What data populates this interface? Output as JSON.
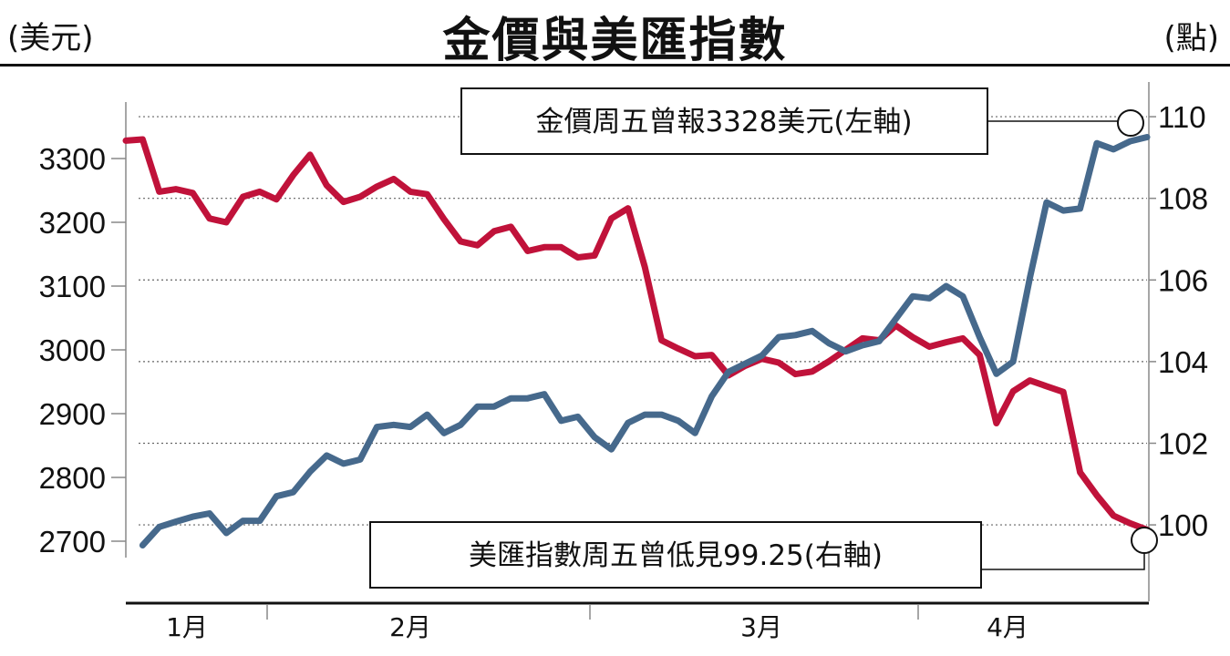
{
  "header": {
    "title": "金價與美匯指數",
    "left_unit": "(美元)",
    "right_unit": "(點)"
  },
  "chart_data": {
    "type": "line",
    "title": "金價與美匯指數",
    "xlabel": "",
    "ylabel_left": "(美元)",
    "ylabel_right": "(點)",
    "months": [
      "1月",
      "2月",
      "3月",
      "4月"
    ],
    "n_points": 62,
    "y_left": {
      "ticks": [
        2700,
        2800,
        2900,
        3000,
        3100,
        3200,
        3300
      ],
      "lim": [
        2620,
        3420
      ]
    },
    "y_right": {
      "ticks": [
        100,
        102,
        104,
        106,
        108,
        110
      ],
      "lim": [
        98.35,
        110.85
      ]
    },
    "series": [
      {
        "name": "金價",
        "axis": "left",
        "color": "#c0123a",
        "values": [
          3328,
          3330,
          3248,
          3252,
          3246,
          3206,
          3200,
          3240,
          3248,
          3236,
          3274,
          3306,
          3258,
          3232,
          3240,
          3256,
          3268,
          3248,
          3244,
          3205,
          3170,
          3164,
          3186,
          3193,
          3155,
          3161,
          3161,
          3145,
          3148,
          3206,
          3222,
          3130,
          3015,
          3002,
          2990,
          2992,
          2960,
          2975,
          2986,
          2980,
          2962,
          2966,
          2982,
          3000,
          3018,
          3015,
          3038,
          3020,
          3005,
          3012,
          3018,
          2992,
          2885,
          2935,
          2952,
          2943,
          2934,
          2808,
          2772,
          2740,
          2728,
          2718
        ]
      },
      {
        "name": "美匯指數",
        "axis": "right",
        "color": "#46698c",
        "values": [
          99.35,
          99.5,
          99.95,
          100.08,
          100.2,
          100.28,
          99.8,
          100.1,
          100.1,
          100.7,
          100.8,
          101.3,
          101.7,
          101.5,
          101.6,
          102.4,
          102.45,
          102.4,
          102.7,
          102.25,
          102.45,
          102.9,
          102.9,
          103.1,
          103.1,
          103.2,
          102.55,
          102.65,
          102.15,
          101.85,
          102.5,
          102.7,
          102.7,
          102.55,
          102.25,
          103.15,
          103.75,
          103.95,
          104.15,
          104.6,
          104.65,
          104.75,
          104.45,
          104.25,
          104.4,
          104.5,
          105.05,
          105.6,
          105.55,
          105.85,
          105.6,
          104.6,
          103.7,
          104.0,
          106.05,
          107.9,
          107.7,
          107.75,
          109.35,
          109.2,
          109.4,
          109.5
        ]
      }
    ],
    "annotations": [
      {
        "text": "金價周五曾報3328美元(左軸)",
        "series": "金價",
        "value": 3328
      },
      {
        "text": "美匯指數周五曾低見99.25(右軸)",
        "series": "美匯指數",
        "value": 99.25
      }
    ]
  }
}
